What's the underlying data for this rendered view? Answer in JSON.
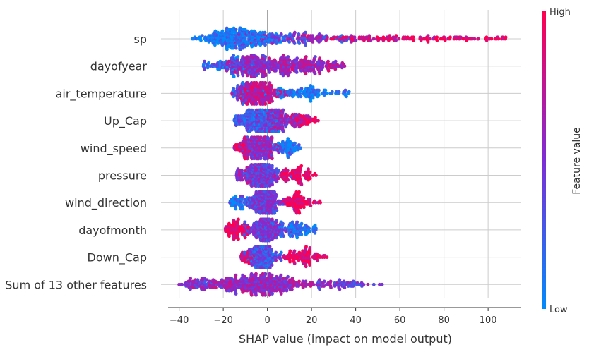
{
  "chart_data": {
    "type": "scatter",
    "subtype": "shap-beeswarm",
    "xlabel": "SHAP value (impact on model output)",
    "xlim": [
      -45,
      115
    ],
    "xticks": [
      -40,
      -20,
      0,
      20,
      40,
      60,
      80,
      100
    ],
    "grid": true,
    "colors": {
      "low": "#008bfb",
      "high": "#ff0051"
    },
    "colorbar": {
      "title": "Feature value",
      "high_label": "High",
      "low_label": "Low"
    },
    "features": [
      {
        "name": "sp",
        "min": -34,
        "max": 108,
        "mode": -14,
        "low_side": "left",
        "clusters": [
          {
            "center": -14,
            "spread": 9,
            "count": 260,
            "color": 0.08
          },
          {
            "center": 10,
            "spread": 14,
            "count": 120,
            "color": 0.4
          },
          {
            "center": 50,
            "spread": 22,
            "count": 120,
            "color": 0.85
          },
          {
            "center": 88,
            "spread": 10,
            "count": 40,
            "color": 0.97
          }
        ]
      },
      {
        "name": "dayofyear",
        "min": -29,
        "max": 35,
        "mode": -10,
        "low_side": "mixed",
        "clusters": [
          {
            "center": -20,
            "spread": 6,
            "count": 60,
            "color": 0.2
          },
          {
            "center": -8,
            "spread": 7,
            "count": 180,
            "color": 0.55
          },
          {
            "center": 8,
            "spread": 9,
            "count": 180,
            "color": 0.6
          },
          {
            "center": 25,
            "spread": 6,
            "count": 60,
            "color": 0.7
          }
        ]
      },
      {
        "name": "air_temperature",
        "min": -16,
        "max": 37,
        "mode": -2,
        "low_side": "right",
        "clusters": [
          {
            "center": -4,
            "spread": 5,
            "count": 220,
            "color": 0.75
          },
          {
            "center": -12,
            "spread": 3,
            "count": 40,
            "color": 0.3
          },
          {
            "center": 20,
            "spread": 10,
            "count": 110,
            "color": 0.1
          }
        ]
      },
      {
        "name": "Up_Cap",
        "min": -15,
        "max": 23,
        "mode": -3,
        "low_side": "left",
        "clusters": [
          {
            "center": -5,
            "spread": 5,
            "count": 230,
            "color": 0.25
          },
          {
            "center": 6,
            "spread": 5,
            "count": 140,
            "color": 0.6
          },
          {
            "center": 17,
            "spread": 3,
            "count": 40,
            "color": 0.9
          }
        ]
      },
      {
        "name": "wind_speed",
        "min": -15,
        "max": 15,
        "mode": 0,
        "low_side": "right",
        "clusters": [
          {
            "center": -3,
            "spread": 4,
            "count": 220,
            "color": 0.55
          },
          {
            "center": -11,
            "spread": 2,
            "count": 40,
            "color": 0.92
          },
          {
            "center": 9,
            "spread": 3,
            "count": 60,
            "color": 0.1
          }
        ]
      },
      {
        "name": "pressure",
        "min": -14,
        "max": 22,
        "mode": -2,
        "low_side": "left",
        "clusters": [
          {
            "center": -2,
            "spread": 4,
            "count": 220,
            "color": 0.45
          },
          {
            "center": -10,
            "spread": 3,
            "count": 40,
            "color": 0.65
          },
          {
            "center": 13,
            "spread": 4,
            "count": 90,
            "color": 0.95
          }
        ]
      },
      {
        "name": "wind_direction",
        "min": -17,
        "max": 24,
        "mode": -1,
        "low_side": "left",
        "clusters": [
          {
            "center": -1,
            "spread": 4,
            "count": 220,
            "color": 0.45
          },
          {
            "center": -13,
            "spread": 3,
            "count": 50,
            "color": 0.12
          },
          {
            "center": 14,
            "spread": 4,
            "count": 90,
            "color": 0.95
          }
        ]
      },
      {
        "name": "dayofmonth",
        "min": -19,
        "max": 22,
        "mode": -1,
        "low_side": "right",
        "clusters": [
          {
            "center": -1,
            "spread": 4,
            "count": 220,
            "color": 0.45
          },
          {
            "center": -14,
            "spread": 3,
            "count": 80,
            "color": 0.95
          },
          {
            "center": 13,
            "spread": 4,
            "count": 80,
            "color": 0.12
          }
        ]
      },
      {
        "name": "Down_Cap",
        "min": -12,
        "max": 27,
        "mode": -2,
        "low_side": "left",
        "clusters": [
          {
            "center": -2,
            "spread": 3,
            "count": 200,
            "color": 0.3
          },
          {
            "center": -9,
            "spread": 2,
            "count": 30,
            "color": 0.8
          },
          {
            "center": 16,
            "spread": 5,
            "count": 100,
            "color": 0.95
          }
        ]
      },
      {
        "name": "Sum of 13 other features",
        "min": -40,
        "max": 52,
        "mode": -3,
        "low_side": "mixed",
        "clusters": [
          {
            "center": -3,
            "spread": 12,
            "count": 380,
            "color": 0.6
          },
          {
            "center": -30,
            "spread": 5,
            "count": 60,
            "color": 0.5
          },
          {
            "center": 32,
            "spread": 7,
            "count": 60,
            "color": 0.45
          }
        ]
      }
    ]
  }
}
